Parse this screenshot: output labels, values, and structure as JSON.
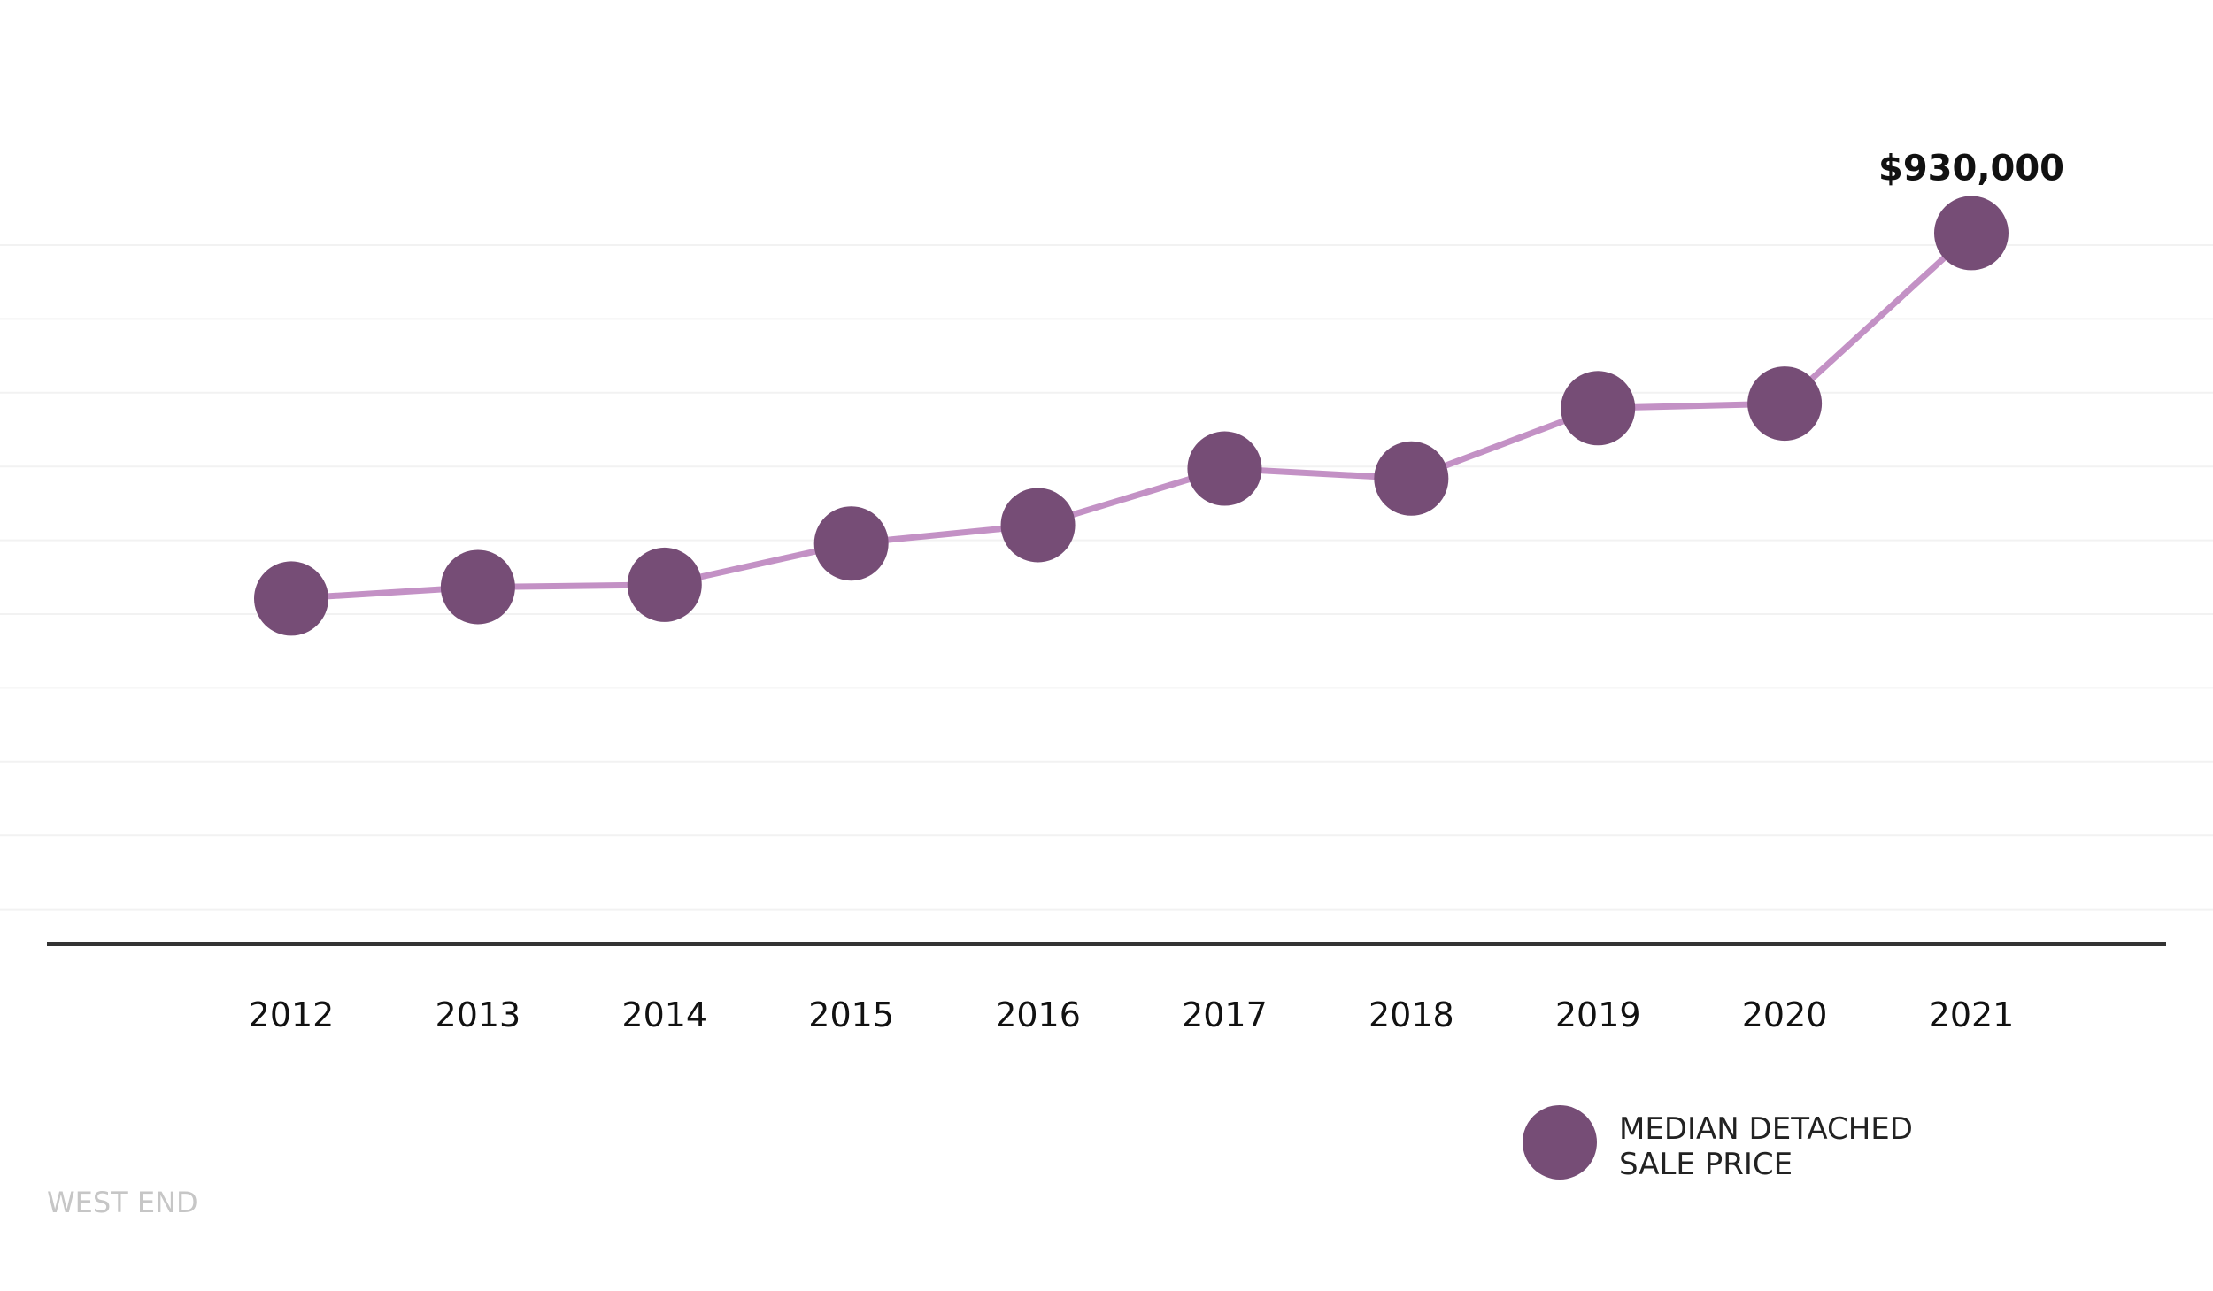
{
  "chart_data": {
    "type": "line",
    "x": [
      "2012",
      "2013",
      "2014",
      "2015",
      "2016",
      "2017",
      "2018",
      "2019",
      "2020",
      "2021"
    ],
    "series": [
      {
        "name": "MEDIAN DETACHED SALE PRICE",
        "values": [
          452000,
          467000,
          470000,
          524000,
          548000,
          622000,
          609000,
          701000,
          707000,
          930000
        ]
      }
    ],
    "data_labels": [
      {
        "x": "2021",
        "text": "$930,000"
      }
    ],
    "ylim": [
      0,
      1030000
    ],
    "grid": true,
    "legend_position": "bottom-right",
    "legend_lines": [
      "MEDIAN DETACHED",
      "SALE PRICE"
    ],
    "colors": {
      "line": "#c391c5",
      "marker": "#764d76",
      "grid": "#f2f2f2",
      "axis": "#333333"
    }
  },
  "footer": {
    "label": "WEST END"
  }
}
